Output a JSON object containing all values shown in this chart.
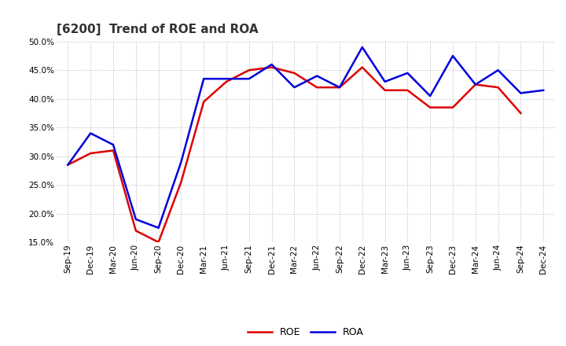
{
  "title": "[6200]  Trend of ROE and ROA",
  "x_labels": [
    "Sep-19",
    "Dec-19",
    "Mar-20",
    "Jun-20",
    "Sep-20",
    "Dec-20",
    "Mar-21",
    "Jun-21",
    "Sep-21",
    "Dec-21",
    "Mar-22",
    "Jun-22",
    "Sep-22",
    "Dec-22",
    "Mar-23",
    "Jun-23",
    "Sep-23",
    "Dec-23",
    "Mar-24",
    "Jun-24",
    "Sep-24",
    "Dec-24"
  ],
  "roe": [
    28.5,
    30.5,
    31.0,
    17.0,
    15.0,
    25.5,
    39.5,
    43.0,
    45.0,
    45.5,
    44.5,
    42.0,
    42.0,
    45.5,
    41.5,
    41.5,
    38.5,
    38.5,
    42.5,
    42.0,
    37.5,
    null
  ],
  "roa": [
    28.5,
    34.0,
    32.0,
    19.0,
    17.5,
    29.0,
    43.5,
    43.5,
    43.5,
    46.0,
    42.0,
    44.0,
    42.0,
    49.0,
    43.0,
    44.5,
    40.5,
    47.5,
    42.5,
    45.0,
    41.0,
    41.5
  ],
  "roe_color": "#dd0000",
  "roa_color": "#0000dd",
  "ylim_min": 15.0,
  "ylim_max": 50.0,
  "yticks": [
    15.0,
    20.0,
    25.0,
    30.0,
    35.0,
    40.0,
    45.0,
    50.0
  ],
  "bg_color": "#ffffff",
  "plot_bg_color": "#ffffff",
  "grid_color": "#aaaaaa",
  "title_fontsize": 11,
  "legend_fontsize": 9,
  "tick_fontsize": 7.5
}
